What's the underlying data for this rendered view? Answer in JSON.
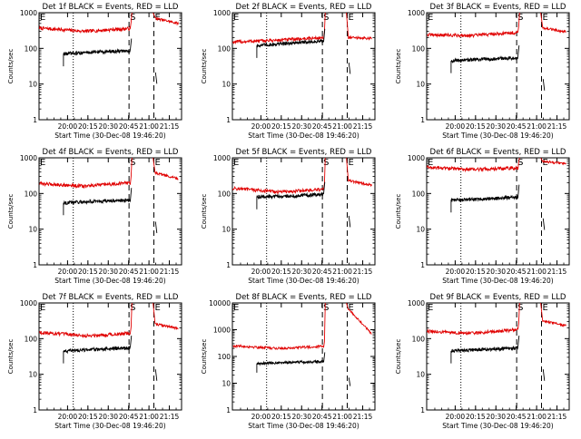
{
  "figure": {
    "tick_hours": [
      "20:00",
      "20:15",
      "20:30",
      "20:45",
      "21:00",
      "21:15"
    ],
    "tick_values": [
      20.0,
      20.25,
      20.5,
      20.75,
      21.0,
      21.25
    ],
    "x_range": [
      19.65,
      21.4
    ],
    "marker_lines": {
      "dotted": 20.07,
      "dashed_S": 20.755,
      "dashed_E": 21.06
    },
    "gap_hours": [
      20.8,
      21.06
    ],
    "marker_labels": {
      "left": "E",
      "S": "S",
      "E": "E"
    },
    "colors": {
      "events": "#000000",
      "lld": "#e00000"
    }
  },
  "chart_data": [
    {
      "type": "line",
      "title": "Det 1f BLACK = Events, RED = LLD",
      "ylabel": "Counts/sec",
      "xlabel": "Start Time (30-Dec-08 19:46:20)",
      "yscale": "log",
      "ylim": [
        1,
        1000
      ],
      "y_ticks": [
        "1",
        "10",
        "100",
        "1000"
      ],
      "x_ticks": [
        "20:00",
        "20:15",
        "20:30",
        "20:45",
        "21:00",
        "21:15"
      ],
      "series": [
        {
          "values_summary": {
            "start": 370,
            "mid": 300,
            "before_gap": 360,
            "after_gap": 700,
            "end": 500
          }
        },
        {
          "values_summary": {
            "start": 70,
            "mid": 80,
            "before_gap": 85,
            "after_gap": 0,
            "end": 0
          }
        }
      ]
    },
    {
      "type": "line",
      "title": "Det 2f BLACK = Events, RED = LLD",
      "ylabel": "Counts/sec",
      "xlabel": "Start Time (30-Dec-08 19:46:20)",
      "yscale": "log",
      "ylim": [
        1,
        1000
      ],
      "y_ticks": [
        "1",
        "10",
        "100",
        "1000"
      ],
      "x_ticks": [
        "20:00",
        "20:15",
        "20:30",
        "20:45",
        "21:00",
        "21:15"
      ],
      "series": [
        {
          "values_summary": {
            "start": 150,
            "mid": 170,
            "before_gap": 200,
            "after_gap": 200,
            "end": 190
          }
        },
        {
          "values_summary": {
            "start": 120,
            "mid": 140,
            "before_gap": 160,
            "after_gap": 0,
            "end": 0
          }
        }
      ]
    },
    {
      "type": "line",
      "title": "Det 3f BLACK = Events, RED = LLD",
      "ylabel": "Counts/sec",
      "xlabel": "Start Time (30-Dec-08 19:46:20)",
      "yscale": "log",
      "ylim": [
        1,
        1000
      ],
      "y_ticks": [
        "1",
        "10",
        "100",
        "1000"
      ],
      "x_ticks": [
        "20:00",
        "20:15",
        "20:30",
        "20:45",
        "21:00",
        "21:15"
      ],
      "series": [
        {
          "values_summary": {
            "start": 240,
            "mid": 230,
            "before_gap": 280,
            "after_gap": 380,
            "end": 290
          }
        },
        {
          "values_summary": {
            "start": 45,
            "mid": 50,
            "before_gap": 55,
            "after_gap": 0,
            "end": 0
          }
        }
      ]
    },
    {
      "type": "line",
      "title": "Det 4f BLACK = Events, RED = LLD",
      "ylabel": "Counts/sec",
      "xlabel": "Start Time (30-Dec-08 19:46:20)",
      "yscale": "log",
      "ylim": [
        1,
        1000
      ],
      "y_ticks": [
        "1",
        "10",
        "100",
        "1000"
      ],
      "x_ticks": [
        "20:00",
        "20:15",
        "20:30",
        "20:45",
        "21:00",
        "21:15"
      ],
      "series": [
        {
          "values_summary": {
            "start": 190,
            "mid": 160,
            "before_gap": 200,
            "after_gap": 380,
            "end": 260
          }
        },
        {
          "values_summary": {
            "start": 55,
            "mid": 60,
            "before_gap": 65,
            "after_gap": 0,
            "end": 0
          }
        }
      ]
    },
    {
      "type": "line",
      "title": "Det 5f BLACK = Events, RED = LLD",
      "ylabel": "Counts/sec",
      "xlabel": "Start Time (30-Dec-08 19:46:20)",
      "yscale": "log",
      "ylim": [
        1,
        1000
      ],
      "y_ticks": [
        "1",
        "10",
        "100",
        "1000"
      ],
      "x_ticks": [
        "20:00",
        "20:15",
        "20:30",
        "20:45",
        "21:00",
        "21:15"
      ],
      "series": [
        {
          "values_summary": {
            "start": 140,
            "mid": 110,
            "before_gap": 130,
            "after_gap": 230,
            "end": 170
          }
        },
        {
          "values_summary": {
            "start": 80,
            "mid": 85,
            "before_gap": 95,
            "after_gap": 0,
            "end": 0
          }
        }
      ]
    },
    {
      "type": "line",
      "title": "Det 6f BLACK = Events, RED = LLD",
      "ylabel": "Counts/sec",
      "xlabel": "Start Time (30-Dec-08 19:46:20)",
      "yscale": "log",
      "ylim": [
        1,
        1000
      ],
      "y_ticks": [
        "1",
        "10",
        "100",
        "1000"
      ],
      "x_ticks": [
        "20:00",
        "20:15",
        "20:30",
        "20:45",
        "21:00",
        "21:15"
      ],
      "series": [
        {
          "values_summary": {
            "start": 540,
            "mid": 470,
            "before_gap": 520,
            "after_gap": 800,
            "end": 680
          }
        },
        {
          "values_summary": {
            "start": 65,
            "mid": 70,
            "before_gap": 80,
            "after_gap": 0,
            "end": 0
          }
        }
      ]
    },
    {
      "type": "line",
      "title": "Det 7f BLACK = Events, RED = LLD",
      "ylabel": "Counts/sec",
      "xlabel": "Start Time (30-Dec-08 19:46:20)",
      "yscale": "log",
      "ylim": [
        1,
        1000
      ],
      "y_ticks": [
        "1",
        "10",
        "100",
        "1000"
      ],
      "x_ticks": [
        "20:00",
        "20:15",
        "20:30",
        "20:45",
        "21:00",
        "21:15"
      ],
      "series": [
        {
          "values_summary": {
            "start": 150,
            "mid": 120,
            "before_gap": 140,
            "after_gap": 260,
            "end": 190
          }
        },
        {
          "values_summary": {
            "start": 45,
            "mid": 50,
            "before_gap": 55,
            "after_gap": 0,
            "end": 0
          }
        }
      ]
    },
    {
      "type": "line",
      "title": "Det 8f BLACK = Events, RED = LLD",
      "ylabel": "Counts/sec",
      "xlabel": "Start Time (30-Dec-08 19:46:20)",
      "yscale": "log",
      "ylim": [
        1,
        10000
      ],
      "y_ticks": [
        "1",
        "10",
        "100",
        "1000",
        "10000"
      ],
      "x_ticks": [
        "20:00",
        "20:15",
        "20:30",
        "20:45",
        "21:00",
        "21:15"
      ],
      "series": [
        {
          "values_summary": {
            "start": 250,
            "mid": 200,
            "before_gap": 240,
            "after_gap": 6000,
            "end": 700
          }
        },
        {
          "values_summary": {
            "start": 55,
            "mid": 60,
            "before_gap": 65,
            "after_gap": 0,
            "end": 0
          }
        }
      ]
    },
    {
      "type": "line",
      "title": "Det 9f BLACK = Events, RED = LLD",
      "ylabel": "Counts/sec",
      "xlabel": "Start Time (30-Dec-08 19:46:20)",
      "yscale": "log",
      "ylim": [
        1,
        1000
      ],
      "y_ticks": [
        "1",
        "10",
        "100",
        "1000"
      ],
      "x_ticks": [
        "20:00",
        "20:15",
        "20:30",
        "20:45",
        "21:00",
        "21:15"
      ],
      "series": [
        {
          "values_summary": {
            "start": 160,
            "mid": 140,
            "before_gap": 180,
            "after_gap": 310,
            "end": 230
          }
        },
        {
          "values_summary": {
            "start": 45,
            "mid": 50,
            "before_gap": 55,
            "after_gap": 0,
            "end": 0
          }
        }
      ]
    }
  ]
}
